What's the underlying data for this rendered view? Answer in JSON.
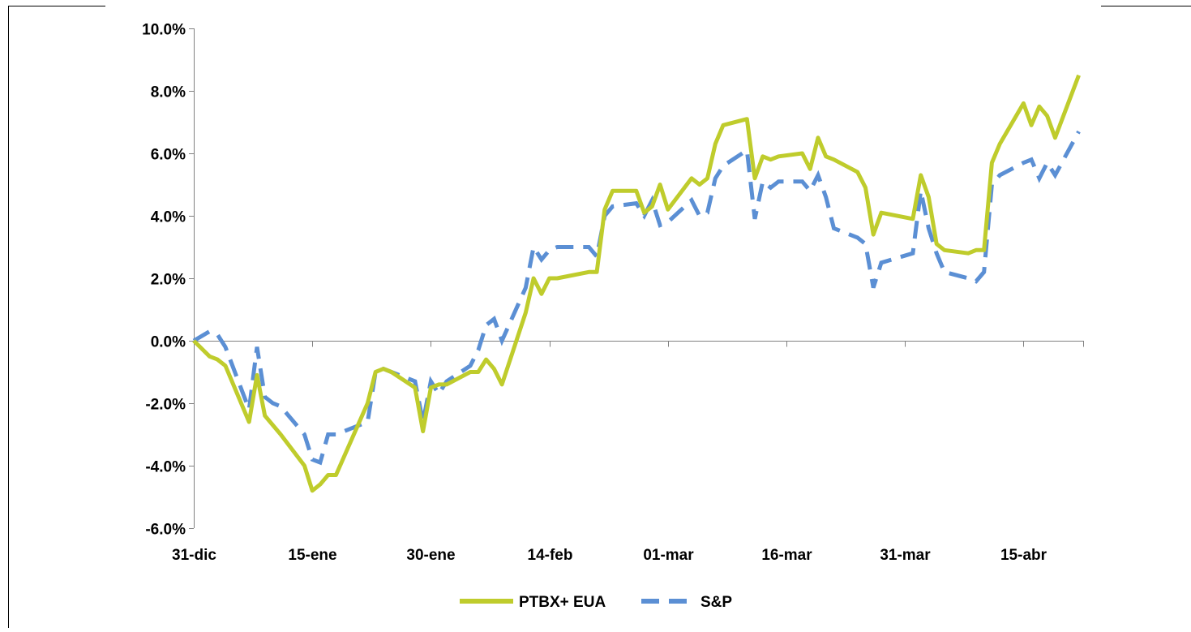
{
  "chart_data": {
    "type": "line",
    "title": "",
    "xlabel": "",
    "ylabel": "",
    "ylim": [
      -6.0,
      10.0
    ],
    "y_ticks": [
      -6.0,
      -4.0,
      -2.0,
      0.0,
      2.0,
      4.0,
      6.0,
      8.0,
      10.0
    ],
    "y_tick_labels": [
      "-6.0%",
      "-4.0%",
      "-2.0%",
      "0.0%",
      "2.0%",
      "4.0%",
      "6.0%",
      "8.0%",
      "10.0%"
    ],
    "x_range": [
      "2012-12-31",
      "2013-04-22"
    ],
    "x_ticks": [
      "2012-12-31",
      "2013-01-15",
      "2013-01-30",
      "2013-02-14",
      "2013-03-01",
      "2013-03-16",
      "2013-03-31",
      "2013-04-15"
    ],
    "x_tick_labels": [
      "31-dic",
      "15-ene",
      "30-ene",
      "14-feb",
      "01-mar",
      "16-mar",
      "31-mar",
      "15-abr"
    ],
    "grid": false,
    "legend": "bottom",
    "series": [
      {
        "name": "PTBX+ EUA",
        "color": "#bfcc2c",
        "style": "solid",
        "x": [
          "2012-12-31",
          "2013-01-02",
          "2013-01-03",
          "2013-01-04",
          "2013-01-07",
          "2013-01-08",
          "2013-01-09",
          "2013-01-10",
          "2013-01-11",
          "2013-01-14",
          "2013-01-15",
          "2013-01-16",
          "2013-01-17",
          "2013-01-18",
          "2013-01-22",
          "2013-01-23",
          "2013-01-24",
          "2013-01-25",
          "2013-01-28",
          "2013-01-29",
          "2013-01-30",
          "2013-01-31",
          "2013-02-01",
          "2013-02-04",
          "2013-02-05",
          "2013-02-06",
          "2013-02-07",
          "2013-02-08",
          "2013-02-11",
          "2013-02-12",
          "2013-02-13",
          "2013-02-14",
          "2013-02-15",
          "2013-02-19",
          "2013-02-20",
          "2013-02-21",
          "2013-02-22",
          "2013-02-25",
          "2013-02-26",
          "2013-02-27",
          "2013-02-28",
          "2013-03-01",
          "2013-03-04",
          "2013-03-05",
          "2013-03-06",
          "2013-03-07",
          "2013-03-08",
          "2013-03-11",
          "2013-03-12",
          "2013-03-13",
          "2013-03-14",
          "2013-03-15",
          "2013-03-18",
          "2013-03-19",
          "2013-03-20",
          "2013-03-21",
          "2013-03-22",
          "2013-03-25",
          "2013-03-26",
          "2013-03-27",
          "2013-03-28",
          "2013-04-01",
          "2013-04-02",
          "2013-04-03",
          "2013-04-04",
          "2013-04-05",
          "2013-04-08",
          "2013-04-09",
          "2013-04-10",
          "2013-04-11",
          "2013-04-12",
          "2013-04-15",
          "2013-04-16",
          "2013-04-17",
          "2013-04-18",
          "2013-04-19",
          "2013-04-22"
        ],
        "values": [
          0.0,
          -0.5,
          -0.6,
          -0.8,
          -2.6,
          -1.1,
          -2.4,
          -2.7,
          -3.0,
          -4.0,
          -4.8,
          -4.6,
          -4.3,
          -4.3,
          -2.0,
          -1.0,
          -0.9,
          -1.0,
          -1.5,
          -2.9,
          -1.5,
          -1.4,
          -1.4,
          -1.0,
          -1.0,
          -0.6,
          -0.9,
          -1.4,
          0.9,
          2.0,
          1.5,
          2.0,
          2.0,
          2.2,
          2.2,
          4.2,
          4.8,
          4.8,
          4.1,
          4.3,
          5.0,
          4.2,
          5.2,
          5.0,
          5.2,
          6.3,
          6.9,
          7.1,
          5.2,
          5.9,
          5.8,
          5.9,
          6.0,
          5.5,
          6.5,
          5.9,
          5.8,
          5.4,
          4.9,
          3.4,
          4.1,
          3.9,
          5.3,
          4.6,
          3.1,
          2.9,
          2.8,
          2.9,
          2.9,
          5.7,
          6.3,
          7.6,
          6.9,
          7.5,
          7.2,
          6.5,
          8.5
        ]
      },
      {
        "name": "S&P",
        "color": "#5b8fd4",
        "style": "dashed",
        "x": [
          "2012-12-31",
          "2013-01-02",
          "2013-01-03",
          "2013-01-04",
          "2013-01-07",
          "2013-01-08",
          "2013-01-09",
          "2013-01-10",
          "2013-01-11",
          "2013-01-14",
          "2013-01-15",
          "2013-01-16",
          "2013-01-17",
          "2013-01-18",
          "2013-01-22",
          "2013-01-23",
          "2013-01-24",
          "2013-01-25",
          "2013-01-28",
          "2013-01-29",
          "2013-01-30",
          "2013-01-31",
          "2013-02-01",
          "2013-02-04",
          "2013-02-05",
          "2013-02-06",
          "2013-02-07",
          "2013-02-08",
          "2013-02-11",
          "2013-02-12",
          "2013-02-13",
          "2013-02-14",
          "2013-02-15",
          "2013-02-19",
          "2013-02-20",
          "2013-02-21",
          "2013-02-22",
          "2013-02-25",
          "2013-02-26",
          "2013-02-27",
          "2013-02-28",
          "2013-03-01",
          "2013-03-04",
          "2013-03-05",
          "2013-03-06",
          "2013-03-07",
          "2013-03-08",
          "2013-03-11",
          "2013-03-12",
          "2013-03-13",
          "2013-03-14",
          "2013-03-15",
          "2013-03-18",
          "2013-03-19",
          "2013-03-20",
          "2013-03-21",
          "2013-03-22",
          "2013-03-25",
          "2013-03-26",
          "2013-03-27",
          "2013-03-28",
          "2013-04-01",
          "2013-04-02",
          "2013-04-03",
          "2013-04-04",
          "2013-04-05",
          "2013-04-08",
          "2013-04-09",
          "2013-04-10",
          "2013-04-11",
          "2013-04-12",
          "2013-04-15",
          "2013-04-16",
          "2013-04-17",
          "2013-04-18",
          "2013-04-19",
          "2013-04-22"
        ],
        "values": [
          0.0,
          0.3,
          0.2,
          -0.2,
          -2.2,
          -0.2,
          -1.8,
          -2.0,
          -2.1,
          -3.0,
          -3.8,
          -3.9,
          -3.0,
          -3.0,
          -2.6,
          -1.0,
          -0.9,
          -1.0,
          -1.3,
          -2.6,
          -1.3,
          -1.7,
          -1.3,
          -0.8,
          -0.3,
          0.5,
          0.7,
          0.0,
          1.7,
          3.0,
          2.6,
          2.9,
          3.0,
          3.0,
          2.7,
          4.0,
          4.3,
          4.4,
          4.0,
          4.5,
          3.7,
          3.8,
          4.5,
          4.0,
          4.1,
          5.2,
          5.6,
          6.1,
          3.9,
          5.1,
          4.9,
          5.1,
          5.1,
          4.8,
          5.3,
          4.6,
          3.6,
          3.3,
          3.1,
          1.7,
          2.5,
          2.8,
          4.8,
          3.6,
          2.8,
          2.2,
          2.0,
          1.9,
          2.2,
          5.0,
          5.3,
          5.7,
          5.8,
          5.2,
          5.7,
          5.3,
          6.7
        ]
      }
    ]
  }
}
